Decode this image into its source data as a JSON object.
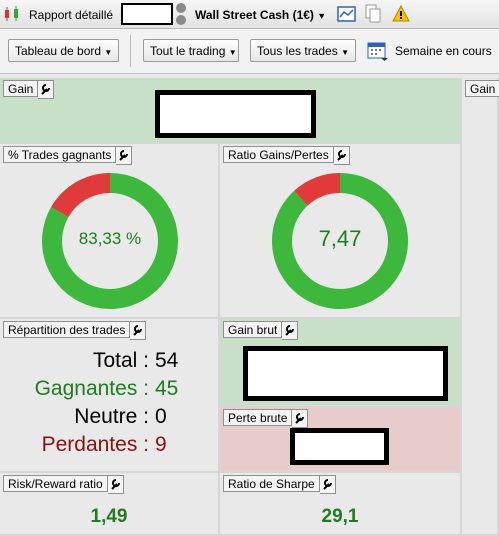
{
  "toolbar": {
    "title": "Rapport détaillé",
    "account": "Wall Street Cash (1€)"
  },
  "filters": [
    "Tableau de bord",
    "Tout le trading",
    "Tous les trades",
    "Semaine en cours"
  ],
  "panels": {
    "gain": {
      "title": "Gain"
    },
    "gain_right": {
      "title": "Gain r"
    },
    "win_rate": {
      "title": "% Trades gagnants",
      "value": 83.33,
      "label": "83,33 %"
    },
    "gain_loss_ratio": {
      "title": "Ratio Gains/Pertes",
      "value": 7.47,
      "label": "7,47"
    },
    "distribution": {
      "title": "Répartition des trades",
      "rows": [
        {
          "label": "Total :",
          "value": 54,
          "color": "#000000"
        },
        {
          "label": "Gagnantes :",
          "value": 45,
          "color": "#1e7d1e"
        },
        {
          "label": "Neutre :",
          "value": 0,
          "color": "#000000"
        },
        {
          "label": "Perdantes :",
          "value": 9,
          "color": "#8b1010"
        }
      ]
    },
    "gross_gain": {
      "title": "Gain brut"
    },
    "gross_loss": {
      "title": "Perte brute"
    },
    "risk_reward": {
      "title": "Risk/Reward ratio",
      "value": 1.49,
      "label": "1,49"
    },
    "sharpe": {
      "title": "Ratio de Sharpe",
      "value": 29.1,
      "label": "29,1"
    }
  },
  "colors": {
    "win": "#3db83d",
    "loss": "#e03a3a"
  }
}
